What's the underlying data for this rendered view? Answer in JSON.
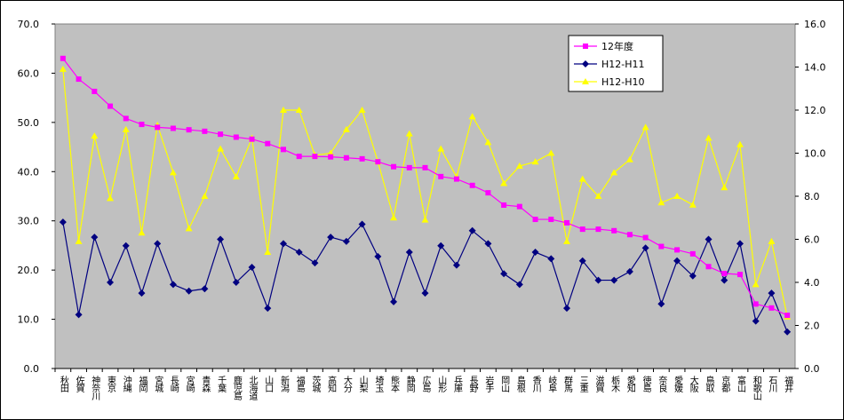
{
  "chart_data": {
    "type": "line",
    "categories": [
      "秋田",
      "佐賀",
      "神奈川",
      "東京",
      "沖縄",
      "福岡",
      "宮城",
      "長崎",
      "宮崎",
      "青森",
      "千葉",
      "鹿児島",
      "北海道",
      "山口",
      "新潟",
      "福島",
      "茨城",
      "高知",
      "大分",
      "山梨",
      "埼玉",
      "熊本",
      "静岡",
      "広島",
      "山形",
      "兵庫",
      "長野",
      "岩手",
      "岡山",
      "島根",
      "香川",
      "岐阜",
      "群馬",
      "三重",
      "滋賀",
      "栃木",
      "愛知",
      "徳島",
      "奈良",
      "愛媛",
      "大阪",
      "鳥取",
      "京都",
      "富山",
      "和歌山",
      "石川",
      "福井"
    ],
    "series": [
      {
        "name": "12年度",
        "color": "#ff00ff",
        "marker": "square",
        "values": [
          63.0,
          58.8,
          56.3,
          53.3,
          50.8,
          49.6,
          49.0,
          48.8,
          48.5,
          48.2,
          47.6,
          47.0,
          46.6,
          45.7,
          44.5,
          43.1,
          43.1,
          43.0,
          42.8,
          42.6,
          42.0,
          41.0,
          40.8,
          40.8,
          39.0,
          38.5,
          37.2,
          35.7,
          33.2,
          32.9,
          30.3,
          30.3,
          29.6,
          28.3,
          28.3,
          28.0,
          27.2,
          26.6,
          24.8,
          24.1,
          23.3,
          20.7,
          19.3,
          19.1,
          13.1,
          12.3,
          10.8
        ]
      },
      {
        "name": "H12-H11",
        "color": "#000080",
        "marker": "diamond",
        "axis": "y2",
        "values": [
          6.8,
          2.5,
          6.1,
          4.0,
          5.7,
          3.5,
          5.8,
          3.9,
          3.6,
          3.7,
          6.0,
          4.0,
          4.7,
          2.8,
          5.8,
          5.4,
          4.9,
          6.1,
          5.9,
          6.7,
          5.2,
          3.1,
          5.4,
          3.5,
          5.7,
          4.8,
          6.4,
          5.8,
          4.4,
          3.9,
          5.4,
          5.1,
          2.8,
          5.0,
          4.1,
          4.1,
          4.5,
          5.6,
          3.0,
          5.0,
          4.3,
          6.0,
          4.1,
          5.8,
          2.2,
          3.5,
          1.7
        ]
      },
      {
        "name": "H12-H10",
        "color": "#ffff00",
        "marker": "triangle",
        "axis": "y2",
        "values": [
          13.9,
          5.9,
          10.8,
          7.9,
          11.1,
          6.3,
          11.3,
          9.1,
          6.5,
          8.0,
          10.2,
          8.9,
          10.7,
          5.4,
          12.0,
          12.0,
          9.9,
          10.0,
          11.1,
          12.0,
          9.6,
          7.0,
          10.9,
          6.9,
          10.2,
          8.9,
          11.7,
          10.5,
          8.6,
          9.4,
          9.6,
          10.0,
          5.9,
          8.8,
          8.0,
          9.1,
          9.7,
          11.2,
          7.7,
          8.0,
          7.6,
          10.7,
          8.4,
          10.4,
          3.9,
          5.9,
          2.4
        ]
      }
    ],
    "ylim": [
      0,
      70
    ],
    "yticks": [
      {
        "value": 0,
        "label": "0.0"
      },
      {
        "value": 10,
        "label": "10.0"
      },
      {
        "value": 20,
        "label": "20.0"
      },
      {
        "value": 30,
        "label": "30.0"
      },
      {
        "value": 40,
        "label": "40.0"
      },
      {
        "value": 50,
        "label": "50.0"
      },
      {
        "value": 60,
        "label": "60.0"
      },
      {
        "value": 70,
        "label": "70.0"
      }
    ],
    "y2lim": [
      0,
      16
    ],
    "y2ticks": [
      {
        "value": 0,
        "label": "0.0"
      },
      {
        "value": 2,
        "label": "2.0"
      },
      {
        "value": 4,
        "label": "4.0"
      },
      {
        "value": 6,
        "label": "6.0"
      },
      {
        "value": 8,
        "label": "8.0"
      },
      {
        "value": 10,
        "label": "10.0"
      },
      {
        "value": 12,
        "label": "12.0"
      },
      {
        "value": 14,
        "label": "14.0"
      },
      {
        "value": 16,
        "label": "16.0"
      }
    ],
    "legend": "top-right",
    "plot_background": "#c0c0c0"
  }
}
